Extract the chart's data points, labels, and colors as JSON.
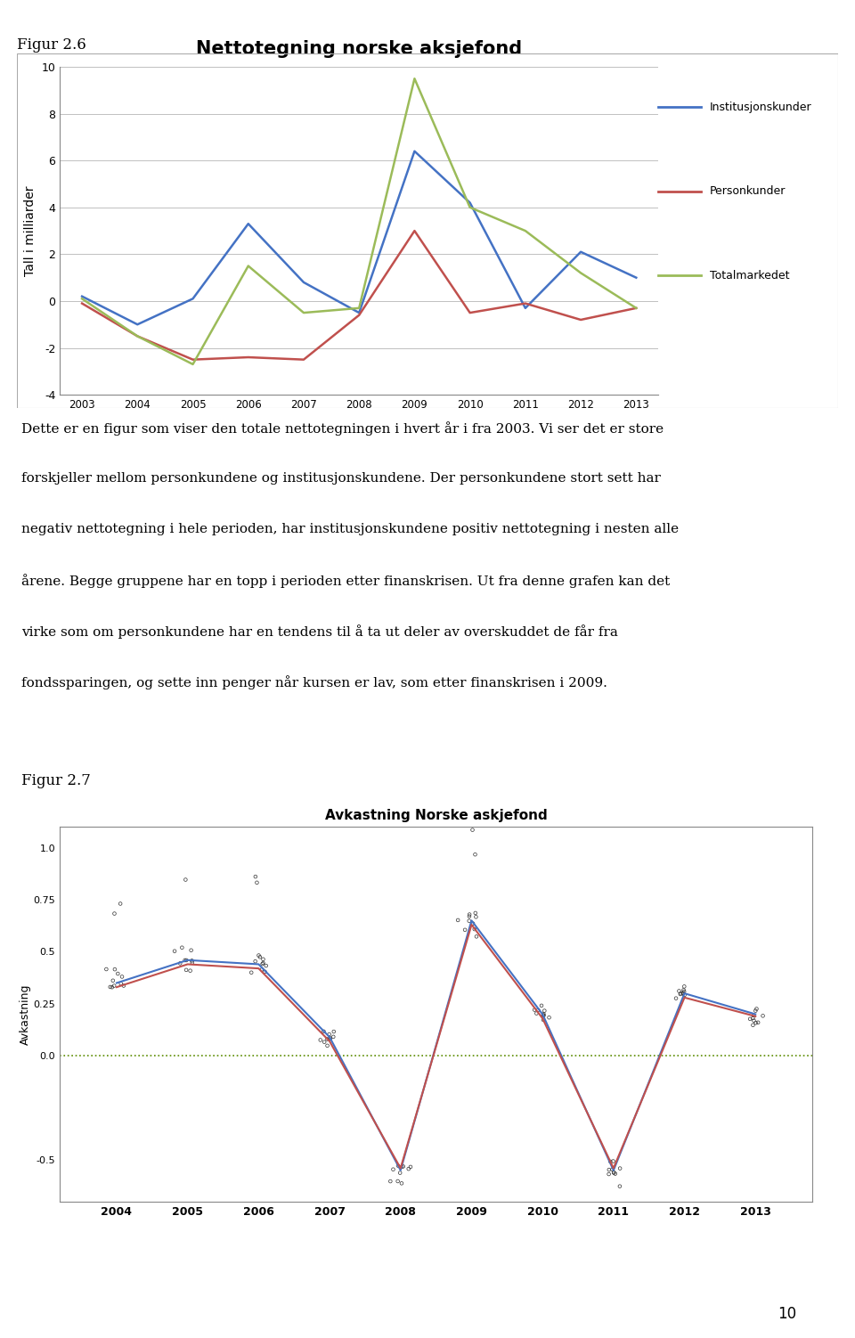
{
  "fig26_title": "Nettotegning norske aksjefond",
  "fig26_ylabel": "Tall i milliarder",
  "fig26_years": [
    2003,
    2004,
    2005,
    2006,
    2007,
    2008,
    2009,
    2010,
    2011,
    2012,
    2013
  ],
  "institusjonskunder": [
    0.2,
    -1.0,
    0.1,
    3.3,
    0.8,
    -0.5,
    6.4,
    4.2,
    -0.3,
    2.1,
    1.0
  ],
  "personkunder": [
    -0.1,
    -1.5,
    -2.5,
    -2.4,
    -2.5,
    -0.6,
    3.0,
    -0.5,
    -0.1,
    -0.8,
    -0.3
  ],
  "totalmarkedet": [
    0.1,
    -1.5,
    -2.7,
    1.5,
    -0.5,
    -0.3,
    9.5,
    4.0,
    3.0,
    1.2,
    -0.3
  ],
  "inst_color": "#4472C4",
  "person_color": "#C0504D",
  "total_color": "#9BBB59",
  "ylim": [
    -4,
    10
  ],
  "yticks": [
    -4,
    -2,
    0,
    2,
    4,
    6,
    8,
    10
  ],
  "legend_labels": [
    "Institusjonskunder",
    "Personkunder",
    "Totalmarkedet"
  ],
  "fig26_label": "Figur 2.6",
  "fig27_label": "Figur 2.7",
  "text_line1": "Dette er en figur som viser den totale nettotegningen i hvert år i fra 2003. Vi ser det er store",
  "text_line2": "forskjeller mellom personkundene og institusjonskundene. Der personkundene stort sett har",
  "text_line3": "negativ nettotegning i hele perioden, har institusjonskundene positiv nettotegning i nesten alle",
  "text_line4": "årene. Begge gruppene har en topp i perioden etter finanskrisen. Ut fra denne grafen kan det",
  "text_line5": "virke som om personkundene har en tendens til å ta ut deler av overskuddet de får fra",
  "text_line6": "fondssparingen, og sette inn penger når kursen er lav, som etter finanskrisen i 2009.",
  "fig27_title": "Avkastning Norske askjefond",
  "fig27_ylabel": "Avkastning",
  "fig27_years": [
    2004,
    2005,
    2006,
    2007,
    2008,
    2009,
    2010,
    2011,
    2012,
    2013
  ],
  "fig27_blue_vals": [
    0.35,
    0.46,
    0.44,
    0.09,
    -0.55,
    0.65,
    0.2,
    -0.55,
    0.3,
    0.2
  ],
  "fig27_red_vals": [
    0.33,
    0.44,
    0.42,
    0.07,
    -0.54,
    0.63,
    0.18,
    -0.54,
    0.28,
    0.19
  ],
  "fig27_ylim": [
    -0.7,
    1.1
  ],
  "fig27_yticks": [
    -0.5,
    0.0,
    0.25,
    0.5,
    0.75,
    1.0
  ],
  "fig27_ytick_labels": [
    "-0.5",
    "0.0",
    "0.25",
    "0.5",
    "0.75",
    "1.0"
  ],
  "page_number": "10"
}
